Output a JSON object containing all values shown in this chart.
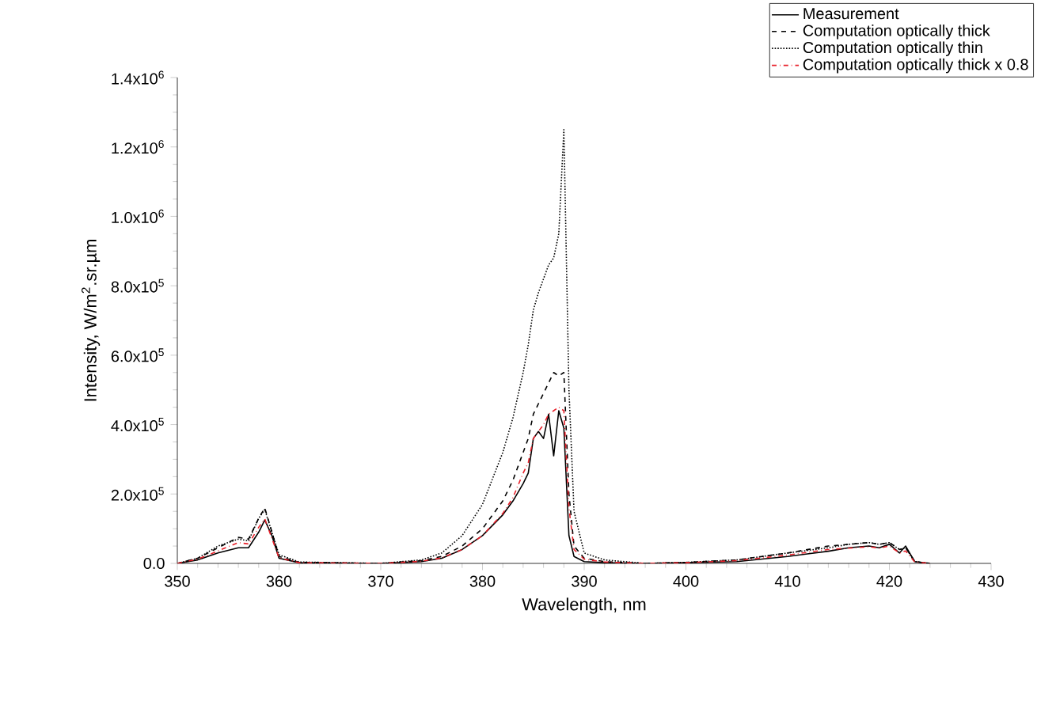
{
  "chart_data": {
    "type": "line",
    "xlabel": "Wavelength, nm",
    "ylabel": "Intensity, W/m$^{2}$.sr.µm",
    "x": [
      350,
      352,
      354,
      356,
      357,
      358,
      358.6,
      359.3,
      360,
      362,
      370,
      374,
      376,
      378,
      380,
      382,
      383,
      384,
      384.5,
      385,
      385.5,
      386,
      386.5,
      387,
      387.5,
      388,
      388.5,
      389,
      390,
      392,
      396,
      400,
      405,
      410,
      414,
      416,
      418,
      419,
      420,
      421,
      421.6,
      422.5,
      424
    ],
    "series": [
      {
        "name": "Measurement",
        "color": "#000000",
        "line_style": "solid",
        "values": [
          0,
          10000,
          30000,
          45000,
          45000,
          90000,
          125000,
          80000,
          15000,
          2000,
          0,
          5000,
          15000,
          40000,
          80000,
          140000,
          180000,
          230000,
          260000,
          360000,
          380000,
          360000,
          430000,
          310000,
          440000,
          390000,
          80000,
          20000,
          5000,
          2000,
          0,
          2000,
          5000,
          20000,
          35000,
          45000,
          50000,
          45000,
          55000,
          30000,
          50000,
          5000,
          0
        ]
      },
      {
        "name": "Computation optically thick",
        "color": "#000000",
        "line_style": "dashed",
        "values": [
          0,
          15000,
          45000,
          75000,
          70000,
          130000,
          160000,
          90000,
          20000,
          3000,
          0,
          8000,
          20000,
          50000,
          100000,
          180000,
          240000,
          320000,
          360000,
          430000,
          460000,
          490000,
          520000,
          550000,
          540000,
          550000,
          200000,
          50000,
          15000,
          5000,
          0,
          3000,
          10000,
          30000,
          50000,
          55000,
          60000,
          55000,
          60000,
          40000,
          45000,
          5000,
          0
        ]
      },
      {
        "name": "Computation optically thin",
        "color": "#000000",
        "line_style": "dotted",
        "values": [
          0,
          15000,
          50000,
          70000,
          65000,
          130000,
          155000,
          90000,
          25000,
          4000,
          0,
          10000,
          30000,
          80000,
          170000,
          320000,
          420000,
          550000,
          630000,
          730000,
          780000,
          820000,
          860000,
          880000,
          950000,
          1250000,
          500000,
          150000,
          30000,
          10000,
          0,
          3000,
          10000,
          30000,
          45000,
          55000,
          60000,
          55000,
          60000,
          40000,
          45000,
          5000,
          0
        ]
      },
      {
        "name": "Computation optically thick x 0.8",
        "color": "#e8202a",
        "line_style": "dashdotted",
        "values": [
          0,
          12000,
          36000,
          60000,
          56000,
          104000,
          128000,
          72000,
          16000,
          2000,
          0,
          6000,
          16000,
          40000,
          80000,
          144000,
          190000,
          260000,
          290000,
          360000,
          380000,
          400000,
          430000,
          440000,
          450000,
          440000,
          160000,
          40000,
          12000,
          4000,
          0,
          2000,
          8000,
          24000,
          40000,
          44000,
          48000,
          44000,
          50000,
          30000,
          36000,
          4000,
          0
        ]
      }
    ],
    "xlim": [
      350,
      430
    ],
    "xticks": [
      350,
      360,
      370,
      380,
      390,
      400,
      410,
      420,
      430
    ],
    "ylim": [
      0,
      1400000
    ],
    "yticks": [
      {
        "value": 0,
        "label": "0.0"
      },
      {
        "value": 200000,
        "label": "2.0x10$^{5}$"
      },
      {
        "value": 400000,
        "label": "4.0x10$^{5}$"
      },
      {
        "value": 600000,
        "label": "6.0x10$^{5}$"
      },
      {
        "value": 800000,
        "label": "8.0x10$^{5}$"
      },
      {
        "value": 1000000,
        "label": "1.0x10$^{6}$"
      },
      {
        "value": 1200000,
        "label": "1.2x10$^{6}$"
      },
      {
        "value": 1400000,
        "label": "1.4x10$^{6}$"
      }
    ],
    "legend": "top right",
    "grid": false,
    "marker": "none"
  }
}
